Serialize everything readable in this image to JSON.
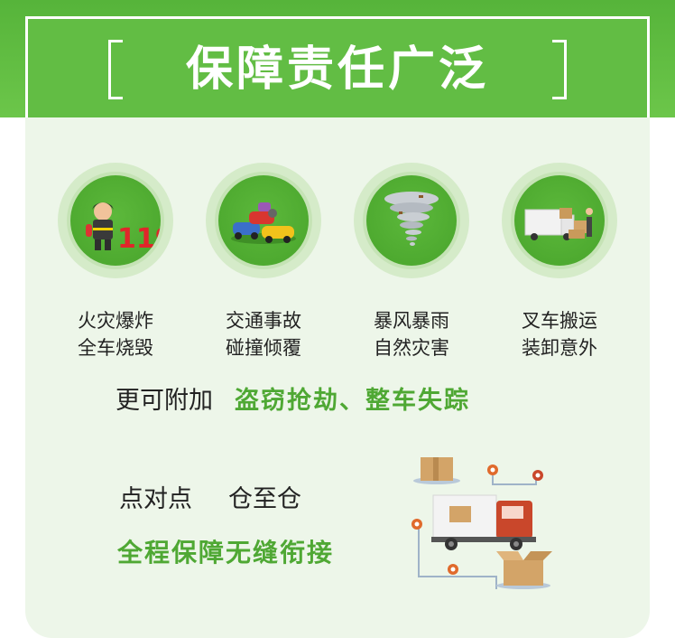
{
  "header": {
    "title": "保障责任广泛"
  },
  "coverage_items": [
    {
      "icon": "firefighter-icon",
      "line1": "火灾爆炸",
      "line2": "全车烧毁"
    },
    {
      "icon": "car-crash-icon",
      "line1": "交通事故",
      "line2": "碰撞倾覆"
    },
    {
      "icon": "tornado-icon",
      "line1": "暴风暴雨",
      "line2": "自然灾害"
    },
    {
      "icon": "forklift-cargo-icon",
      "line1": "叉车搬运",
      "line2": "装卸意外"
    }
  ],
  "extra": {
    "prefix": "更可附加",
    "highlight": "盗窃抢劫、整车失踪"
  },
  "delivery": {
    "point": "点对点",
    "warehouse": "仓至仓",
    "seamless": "全程保障无缝衔接"
  },
  "colors": {
    "brand_green": "#62bd44",
    "highlight_green": "#4fa834",
    "card_bg": "#edf6e9",
    "truck_red": "#c9472b",
    "pin_orange": "#e06a2c"
  }
}
